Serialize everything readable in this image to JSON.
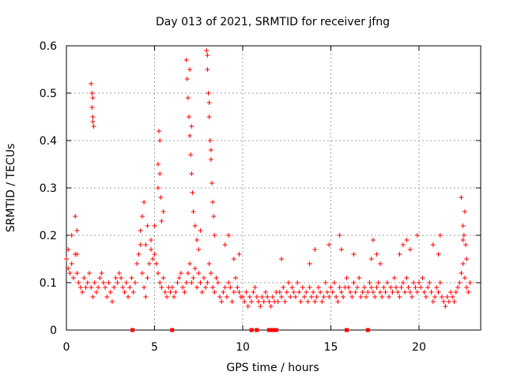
{
  "chart_data": {
    "type": "scatter",
    "title": "Day 013 of 2021, SRMTID for receiver jfng",
    "xlabel": "GPS time / hours",
    "ylabel": "SRMTID / TECUs",
    "xlim": [
      0,
      23.5
    ],
    "ylim": [
      0,
      0.6
    ],
    "x_ticks": [
      0,
      5,
      10,
      15,
      20
    ],
    "x_tick_labels": [
      "0",
      "5",
      "10",
      "15",
      "20"
    ],
    "y_ticks": [
      0,
      0.1,
      0.2,
      0.3,
      0.4,
      0.5,
      0.6
    ],
    "y_tick_labels": [
      "0",
      "0.1",
      "0.2",
      "0.3",
      "0.4",
      "0.5",
      "0.6"
    ],
    "grid": true,
    "marker": "+",
    "series_color": "#ff0000",
    "zero_markers_x": [
      3.75,
      6.0,
      10.5,
      10.8,
      11.5,
      11.7,
      11.9,
      15.9,
      17.1
    ],
    "series": [
      {
        "name": "SRMTID",
        "x": [
          0.0,
          0.1,
          0.2,
          0.3,
          0.4,
          0.5,
          0.6,
          0.7,
          0.8,
          0.9,
          1.0,
          1.1,
          1.2,
          1.3,
          1.4,
          1.5,
          1.6,
          1.7,
          1.8,
          1.9,
          2.0,
          2.1,
          2.2,
          2.3,
          2.4,
          2.5,
          2.6,
          2.7,
          2.8,
          2.9,
          3.0,
          3.1,
          3.2,
          3.3,
          3.4,
          3.5,
          3.6,
          3.7,
          3.8,
          3.9,
          4.0,
          4.1,
          4.2,
          4.3,
          4.4,
          4.5,
          4.6,
          4.7,
          4.8,
          4.9,
          5.0,
          5.1,
          5.2,
          5.3,
          5.4,
          5.5,
          5.6,
          5.7,
          5.8,
          5.9,
          6.0,
          6.1,
          6.2,
          6.3,
          6.4,
          6.5,
          6.6,
          6.7,
          6.8,
          6.9,
          7.0,
          7.1,
          7.2,
          7.3,
          7.4,
          7.5,
          7.6,
          7.7,
          7.8,
          7.9,
          8.0,
          8.1,
          8.2,
          8.3,
          8.4,
          8.5,
          8.6,
          8.7,
          8.8,
          8.9,
          9.0,
          9.1,
          9.2,
          9.3,
          9.4,
          9.5,
          9.6,
          9.7,
          9.8,
          9.9,
          10.0,
          10.1,
          10.2,
          10.3,
          10.4,
          10.5,
          10.6,
          10.7,
          10.8,
          10.9,
          11.0,
          11.1,
          11.2,
          11.3,
          11.4,
          11.5,
          11.6,
          11.7,
          11.8,
          11.9,
          12.0,
          12.1,
          12.2,
          12.3,
          12.4,
          12.5,
          12.6,
          12.7,
          12.8,
          12.9,
          13.0,
          13.1,
          13.2,
          13.3,
          13.4,
          13.5,
          13.6,
          13.7,
          13.8,
          13.9,
          14.0,
          14.1,
          14.2,
          14.3,
          14.4,
          14.5,
          14.6,
          14.7,
          14.8,
          14.9,
          15.0,
          15.1,
          15.2,
          15.3,
          15.4,
          15.5,
          15.6,
          15.7,
          15.8,
          15.9,
          16.0,
          16.1,
          16.2,
          16.3,
          16.4,
          16.5,
          16.6,
          16.7,
          16.8,
          16.9,
          17.0,
          17.1,
          17.2,
          17.3,
          17.4,
          17.5,
          17.6,
          17.7,
          17.8,
          17.9,
          18.0,
          18.1,
          18.2,
          18.3,
          18.4,
          18.5,
          18.6,
          18.7,
          18.8,
          18.9,
          19.0,
          19.1,
          19.2,
          19.3,
          19.4,
          19.5,
          19.6,
          19.7,
          19.8,
          19.9,
          20.0,
          20.1,
          20.2,
          20.3,
          20.4,
          20.5,
          20.6,
          20.7,
          20.8,
          20.9,
          21.0,
          21.1,
          21.2,
          21.3,
          21.4,
          21.5,
          21.6,
          21.7,
          21.8,
          21.9,
          22.0,
          22.1,
          22.2,
          22.3,
          22.4,
          22.5,
          22.6,
          22.7,
          22.8,
          22.9,
          0.1,
          0.3,
          0.5,
          0.6,
          0.6,
          1.4,
          1.45,
          1.5,
          1.5,
          1.55,
          1.45,
          1.5,
          4.2,
          4.3,
          4.4,
          4.5,
          4.6,
          4.8,
          5.0,
          5.2,
          5.25,
          5.3,
          5.35,
          5.4,
          5.2,
          5.3,
          5.5,
          6.8,
          6.85,
          6.9,
          6.95,
          7.0,
          7.05,
          7.1,
          7.15,
          7.2,
          7.0,
          7.1,
          7.3,
          7.4,
          7.5,
          7.6,
          7.95,
          8.0,
          8.05,
          8.1,
          8.15,
          8.2,
          8.25,
          8.3,
          8.0,
          8.1,
          8.2,
          8.35,
          8.4,
          9.0,
          9.2,
          9.5,
          9.8,
          12.2,
          13.8,
          14.1,
          14.9,
          15.5,
          15.6,
          16.3,
          17.3,
          17.4,
          17.6,
          17.8,
          18.9,
          19.1,
          19.3,
          19.5,
          19.9,
          20.8,
          21.1,
          21.2,
          22.4,
          22.5,
          22.6,
          22.55,
          22.65,
          22.7,
          22.5
        ],
        "y": [
          0.15,
          0.13,
          0.12,
          0.14,
          0.11,
          0.16,
          0.12,
          0.1,
          0.09,
          0.08,
          0.11,
          0.09,
          0.1,
          0.12,
          0.09,
          0.07,
          0.1,
          0.08,
          0.09,
          0.11,
          0.12,
          0.1,
          0.09,
          0.07,
          0.1,
          0.08,
          0.06,
          0.09,
          0.11,
          0.1,
          0.12,
          0.11,
          0.09,
          0.08,
          0.1,
          0.07,
          0.09,
          0.11,
          0.08,
          0.1,
          0.14,
          0.16,
          0.18,
          0.12,
          0.09,
          0.07,
          0.11,
          0.14,
          0.17,
          0.15,
          0.16,
          0.14,
          0.12,
          0.1,
          0.09,
          0.11,
          0.08,
          0.07,
          0.09,
          0.08,
          0.09,
          0.07,
          0.08,
          0.1,
          0.11,
          0.12,
          0.09,
          0.08,
          0.1,
          0.12,
          0.14,
          0.1,
          0.11,
          0.13,
          0.09,
          0.12,
          0.1,
          0.08,
          0.11,
          0.09,
          0.1,
          0.14,
          0.12,
          0.09,
          0.08,
          0.11,
          0.1,
          0.07,
          0.06,
          0.08,
          0.09,
          0.07,
          0.1,
          0.09,
          0.06,
          0.08,
          0.11,
          0.09,
          0.08,
          0.07,
          0.07,
          0.06,
          0.08,
          0.05,
          0.07,
          0.06,
          0.08,
          0.09,
          0.07,
          0.06,
          0.05,
          0.07,
          0.06,
          0.08,
          0.07,
          0.06,
          0.05,
          0.07,
          0.06,
          0.08,
          0.06,
          0.08,
          0.07,
          0.09,
          0.06,
          0.08,
          0.1,
          0.07,
          0.09,
          0.08,
          0.07,
          0.1,
          0.08,
          0.06,
          0.09,
          0.07,
          0.08,
          0.06,
          0.09,
          0.07,
          0.08,
          0.06,
          0.07,
          0.09,
          0.08,
          0.06,
          0.07,
          0.1,
          0.08,
          0.07,
          0.09,
          0.08,
          0.1,
          0.07,
          0.06,
          0.09,
          0.08,
          0.07,
          0.09,
          0.11,
          0.09,
          0.08,
          0.07,
          0.1,
          0.08,
          0.09,
          0.11,
          0.07,
          0.08,
          0.09,
          0.07,
          0.08,
          0.1,
          0.09,
          0.08,
          0.07,
          0.09,
          0.1,
          0.08,
          0.07,
          0.09,
          0.08,
          0.1,
          0.07,
          0.09,
          0.08,
          0.11,
          0.09,
          0.08,
          0.07,
          0.09,
          0.1,
          0.08,
          0.11,
          0.09,
          0.08,
          0.07,
          0.1,
          0.09,
          0.08,
          0.1,
          0.09,
          0.11,
          0.08,
          0.07,
          0.09,
          0.1,
          0.08,
          0.06,
          0.07,
          0.09,
          0.08,
          0.1,
          0.07,
          0.06,
          0.05,
          0.07,
          0.06,
          0.08,
          0.07,
          0.06,
          0.08,
          0.09,
          0.1,
          0.12,
          0.14,
          0.11,
          0.09,
          0.08,
          0.1,
          0.17,
          0.2,
          0.24,
          0.16,
          0.21,
          0.52,
          0.47,
          0.44,
          0.49,
          0.43,
          0.5,
          0.45,
          0.21,
          0.24,
          0.27,
          0.18,
          0.22,
          0.19,
          0.22,
          0.35,
          0.42,
          0.33,
          0.28,
          0.23,
          0.3,
          0.4,
          0.25,
          0.57,
          0.53,
          0.49,
          0.45,
          0.41,
          0.37,
          0.33,
          0.29,
          0.25,
          0.55,
          0.43,
          0.22,
          0.19,
          0.17,
          0.21,
          0.59,
          0.55,
          0.5,
          0.45,
          0.4,
          0.36,
          0.31,
          0.27,
          0.58,
          0.48,
          0.38,
          0.24,
          0.2,
          0.18,
          0.2,
          0.15,
          0.16,
          0.15,
          0.14,
          0.17,
          0.18,
          0.2,
          0.17,
          0.16,
          0.15,
          0.19,
          0.16,
          0.14,
          0.16,
          0.18,
          0.19,
          0.17,
          0.2,
          0.18,
          0.16,
          0.2,
          0.28,
          0.22,
          0.25,
          0.2,
          0.18,
          0.15,
          0.19
        ]
      }
    ]
  }
}
